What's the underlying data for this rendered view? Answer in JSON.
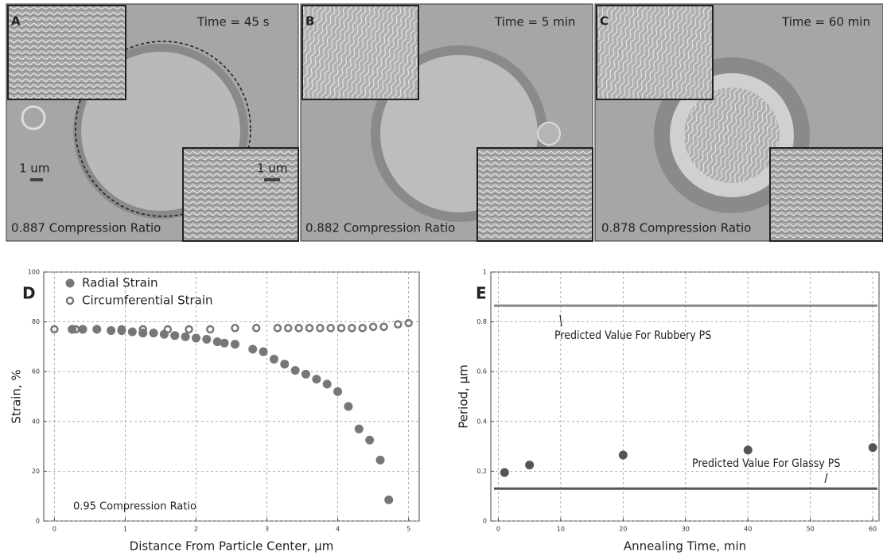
{
  "image_panels": [
    {
      "label": "A",
      "time": "Time = 45 s",
      "ratio": "0.887 Compression Ratio",
      "scale_bar": "1 um",
      "inset_scale_bar": "1 um"
    },
    {
      "label": "B",
      "time": "Time = 5 min",
      "ratio": "0.882 Compression Ratio"
    },
    {
      "label": "C",
      "time": "Time = 60 min",
      "ratio": "0.878 Compression Ratio"
    }
  ],
  "chart_data": [
    {
      "type": "scatter",
      "panel_label": "D",
      "x_label": "Distance From Particle Center, µm",
      "y_label": "Strain, %",
      "annotation": "0.95 Compression Ratio",
      "grid": true,
      "xlim": [
        -0.15,
        5.15
      ],
      "xticks": [
        0,
        1,
        2,
        3,
        4,
        5
      ],
      "ylim": [
        0,
        100
      ],
      "yticks": [
        0,
        20,
        40,
        60,
        80,
        100
      ],
      "series": [
        {
          "name": "Radial Strain",
          "color": "#777777",
          "marker": "filled",
          "x": [
            0.25,
            0.4,
            0.6,
            0.8,
            0.95,
            1.1,
            1.25,
            1.4,
            1.55,
            1.7,
            1.85,
            2.0,
            2.15,
            2.3,
            2.4,
            2.55,
            2.8,
            2.95,
            3.1,
            3.25,
            3.4,
            3.55,
            3.7,
            3.85,
            4.0,
            4.15,
            4.3,
            4.45,
            4.6,
            4.72
          ],
          "values": [
            77,
            77,
            77,
            76.5,
            76.5,
            76,
            75.5,
            75.5,
            75,
            74.5,
            74,
            73.5,
            73,
            72,
            71.5,
            71,
            69,
            68,
            65,
            63,
            60.5,
            59,
            57,
            55,
            52,
            46,
            37,
            32.5,
            24.5,
            8.5
          ]
        },
        {
          "name": "Circumferential Strain",
          "color": "#777777",
          "marker": "open",
          "x": [
            0,
            0.3,
            0.6,
            0.95,
            1.25,
            1.6,
            1.9,
            2.2,
            2.55,
            2.85,
            3.15,
            3.3,
            3.45,
            3.6,
            3.75,
            3.9,
            4.05,
            4.2,
            4.35,
            4.5,
            4.65,
            4.85,
            5.0
          ],
          "values": [
            77,
            77,
            77,
            77,
            77,
            77,
            77,
            77,
            77.5,
            77.5,
            77.5,
            77.5,
            77.5,
            77.5,
            77.5,
            77.5,
            77.5,
            77.5,
            77.5,
            78,
            78,
            79,
            79.5
          ]
        }
      ]
    },
    {
      "type": "scatter",
      "panel_label": "E",
      "x_label": "Annealing Time, min",
      "y_label": "Period, µm",
      "grid": true,
      "xlim": [
        -1.2,
        61
      ],
      "xticks": [
        0,
        10,
        20,
        30,
        40,
        50,
        60
      ],
      "ylim": [
        0,
        1
      ],
      "yticks": [
        0,
        0.2,
        0.4,
        0.6,
        0.8,
        1
      ],
      "series": [
        {
          "color": "#555555",
          "marker": "filled",
          "x": [
            1,
            5,
            20,
            40,
            60
          ],
          "values": [
            0.195,
            0.225,
            0.265,
            0.285,
            0.295
          ]
        }
      ],
      "reference_lines": [
        {
          "value": 0.865,
          "label": "Predicted Value For Rubbery PS",
          "color": "#888888"
        },
        {
          "value": 0.13,
          "label": "Predicted Value For Glassy PS",
          "color": "#555555"
        }
      ]
    }
  ]
}
